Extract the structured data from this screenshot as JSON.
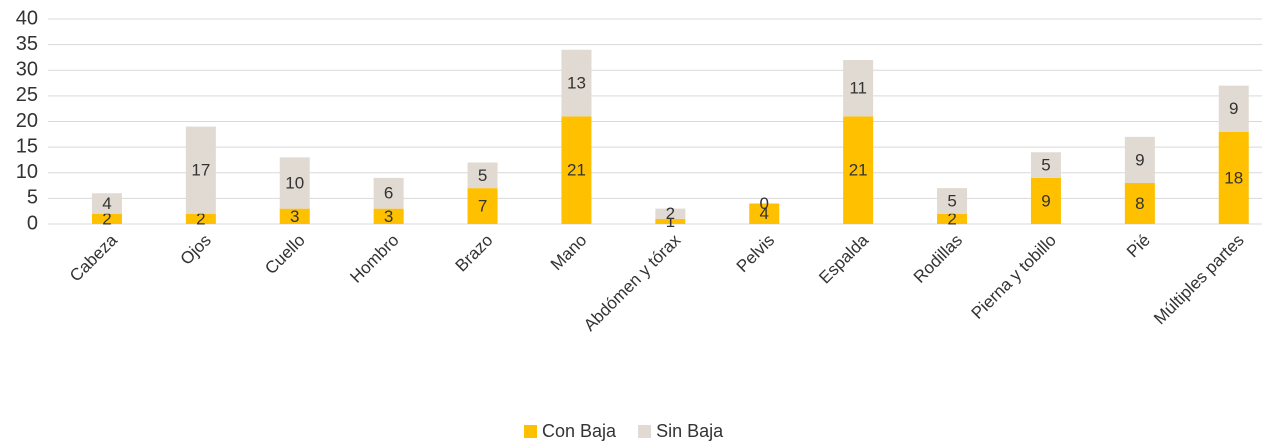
{
  "chart_data": {
    "type": "stacked_bar",
    "categories": [
      "Cabeza",
      "Ojos",
      "Cuello",
      "Hombro",
      "Brazo",
      "Mano",
      "Abdómen y tórax",
      "Pelvis",
      "Espalda",
      "Rodillas",
      "Pierna y tobillo",
      "Pié",
      "Múltiples partes"
    ],
    "series": [
      {
        "name": "Con Baja",
        "color": "#ffc000",
        "values": [
          2,
          2,
          3,
          3,
          7,
          21,
          1,
          4,
          21,
          2,
          9,
          8,
          18
        ]
      },
      {
        "name": "Sin Baja",
        "color": "#e0dad2",
        "values": [
          4,
          17,
          10,
          6,
          5,
          13,
          2,
          0,
          11,
          5,
          5,
          9,
          9
        ]
      }
    ],
    "ylim": [
      0,
      40
    ],
    "yticks": [
      0,
      5,
      10,
      15,
      20,
      25,
      30,
      35,
      40
    ],
    "grid": true,
    "legend": "bottom"
  }
}
